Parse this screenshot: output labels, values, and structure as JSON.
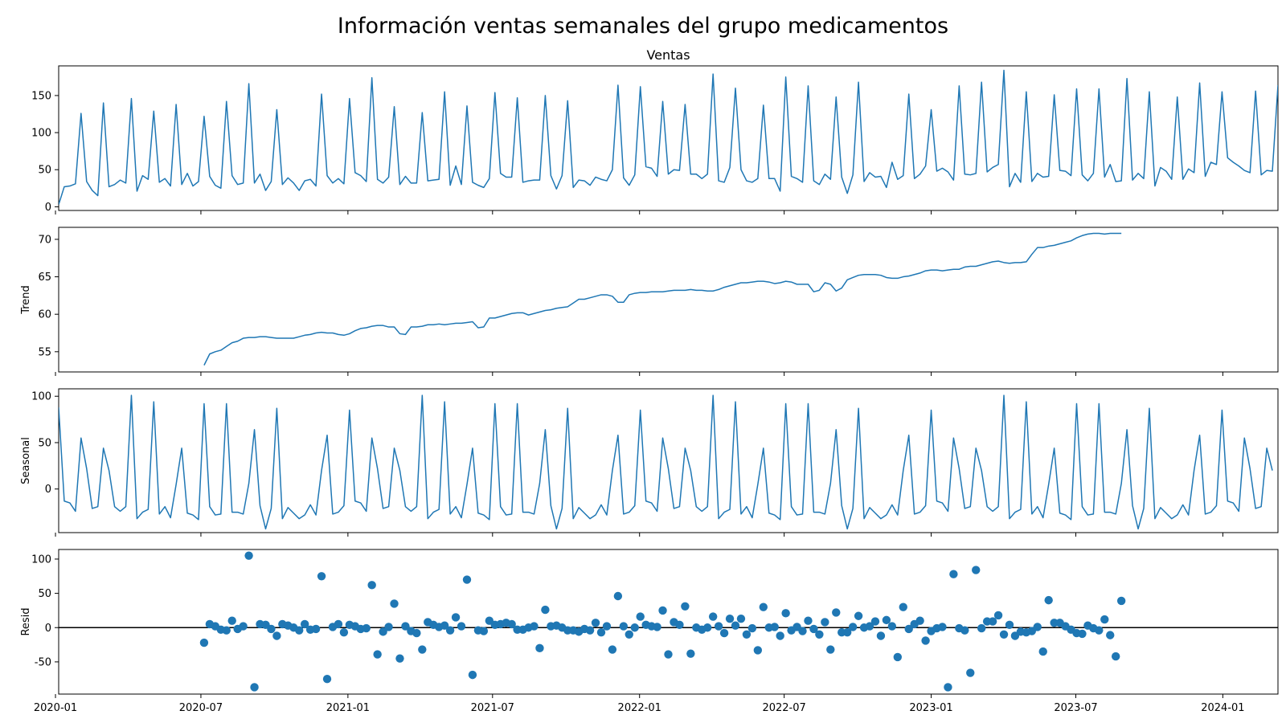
{
  "figure": {
    "suptitle": "Información ventas semanales del grupo medicamentos",
    "line_color": "#1f77b4",
    "zero_line_color": "#000000"
  },
  "chart_data": [
    {
      "type": "line",
      "title": "Ventas",
      "ylabel": "",
      "xlim": [
        "2020-01-05",
        "2024-03-10"
      ],
      "ylim": [
        -5,
        190
      ],
      "yticks": [
        0,
        50,
        100,
        150
      ],
      "x_tick_labels_shown": false,
      "x_start": "2020-01-05",
      "x_step_days": 7,
      "values": [
        3,
        27,
        28,
        31,
        126,
        34,
        22,
        15,
        140,
        27,
        30,
        36,
        32,
        146,
        21,
        42,
        37,
        129,
        33,
        38,
        28,
        138,
        30,
        45,
        28,
        34,
        122,
        41,
        29,
        25,
        142,
        42,
        30,
        32,
        166,
        32,
        44,
        22,
        34,
        131,
        30,
        39,
        32,
        22,
        35,
        37,
        28,
        152,
        42,
        32,
        38,
        31,
        146,
        46,
        42,
        34,
        174,
        37,
        32,
        40,
        135,
        30,
        41,
        32,
        32,
        127,
        35,
        36,
        37,
        155,
        29,
        55,
        30,
        136,
        33,
        29,
        26,
        38,
        154,
        45,
        40,
        40,
        147,
        33,
        35,
        36,
        36,
        150,
        42,
        24,
        42,
        143,
        26,
        36,
        35,
        29,
        40,
        37,
        35,
        50,
        164,
        39,
        29,
        43,
        162,
        54,
        52,
        41,
        142,
        44,
        50,
        49,
        138,
        44,
        44,
        38,
        44,
        179,
        35,
        33,
        53,
        160,
        50,
        35,
        33,
        38,
        137,
        38,
        38,
        21,
        175,
        41,
        38,
        33,
        163,
        35,
        30,
        44,
        37,
        148,
        40,
        18,
        43,
        168,
        34,
        46,
        40,
        41,
        26,
        60,
        37,
        42,
        152,
        38,
        44,
        55,
        131,
        48,
        52,
        47,
        36,
        163,
        44,
        43,
        45,
        168,
        47,
        53,
        57,
        184,
        27,
        45,
        33,
        155,
        34,
        45,
        40,
        41,
        151,
        49,
        48,
        42,
        159,
        43,
        35,
        45,
        159,
        40,
        57,
        34,
        35,
        173,
        36,
        45,
        38,
        155,
        28,
        53,
        48,
        37,
        148,
        37,
        51,
        46,
        167,
        41,
        60,
        57,
        155,
        66,
        60,
        55,
        49,
        46,
        156,
        43,
        49,
        48,
        164
      ]
    },
    {
      "type": "line",
      "title": "",
      "ylabel": "Trend",
      "xlim": [
        "2020-01-05",
        "2024-03-10"
      ],
      "ylim": [
        52.3,
        71.6
      ],
      "yticks": [
        55,
        60,
        65,
        70
      ],
      "x_tick_labels_shown": false,
      "x_start": "2020-01-05",
      "x_step_days": 7,
      "values": [
        null,
        null,
        null,
        null,
        null,
        null,
        null,
        null,
        null,
        null,
        null,
        null,
        null,
        null,
        null,
        null,
        null,
        null,
        null,
        null,
        null,
        null,
        null,
        null,
        null,
        null,
        53.2,
        54.7,
        55.0,
        55.2,
        55.7,
        56.2,
        56.4,
        56.8,
        56.9,
        56.9,
        57.0,
        57.0,
        56.9,
        56.8,
        56.8,
        56.8,
        56.8,
        57.0,
        57.2,
        57.3,
        57.5,
        57.6,
        57.5,
        57.5,
        57.3,
        57.2,
        57.4,
        57.8,
        58.1,
        58.2,
        58.4,
        58.5,
        58.5,
        58.3,
        58.3,
        57.4,
        57.3,
        58.3,
        58.3,
        58.4,
        58.6,
        58.6,
        58.7,
        58.6,
        58.7,
        58.8,
        58.8,
        58.9,
        59.0,
        58.2,
        58.3,
        59.5,
        59.5,
        59.7,
        59.9,
        60.1,
        60.2,
        60.2,
        59.9,
        60.1,
        60.3,
        60.5,
        60.6,
        60.8,
        60.9,
        61.0,
        61.5,
        62.0,
        62.0,
        62.2,
        62.4,
        62.6,
        62.6,
        62.4,
        61.6,
        61.6,
        62.6,
        62.8,
        62.9,
        62.9,
        63.0,
        63.0,
        63.0,
        63.1,
        63.2,
        63.2,
        63.2,
        63.3,
        63.2,
        63.2,
        63.1,
        63.1,
        63.3,
        63.6,
        63.8,
        64.0,
        64.2,
        64.2,
        64.3,
        64.4,
        64.4,
        64.3,
        64.1,
        64.2,
        64.4,
        64.3,
        64.0,
        64.0,
        64.0,
        63.0,
        63.2,
        64.2,
        64.0,
        63.1,
        63.5,
        64.6,
        64.9,
        65.2,
        65.3,
        65.3,
        65.3,
        65.2,
        64.9,
        64.8,
        64.8,
        65.0,
        65.1,
        65.3,
        65.5,
        65.8,
        65.9,
        65.9,
        65.8,
        65.9,
        66.0,
        66.0,
        66.3,
        66.4,
        66.4,
        66.6,
        66.8,
        67.0,
        67.1,
        66.9,
        66.8,
        66.9,
        66.9,
        67.0,
        68.0,
        68.9,
        68.9,
        69.1,
        69.2,
        69.4,
        69.6,
        69.8,
        70.2,
        70.5,
        70.7,
        70.8,
        70.8,
        70.7,
        70.8,
        70.8,
        70.8
      ]
    },
    {
      "type": "line",
      "title": "",
      "ylabel": "Seasonal",
      "xlim": [
        "2020-01-05",
        "2024-03-10"
      ],
      "ylim": [
        -47,
        108
      ],
      "yticks": [
        0,
        50,
        100
      ],
      "x_tick_labels_shown": false,
      "x_start": "2020-01-05",
      "x_step_days": 7,
      "values": [
        88,
        -13,
        -15,
        -24,
        55,
        22,
        -21,
        -19,
        44,
        20,
        -19,
        -24,
        -19,
        101,
        -32,
        -25,
        -22,
        94,
        -27,
        -19,
        -31,
        5,
        44,
        -26,
        -28,
        -33,
        92,
        -19,
        -28,
        -27,
        92,
        -25,
        -25,
        -27,
        6,
        64,
        -18,
        -43,
        -21,
        87,
        -32,
        -20,
        -26,
        -32,
        -28,
        -17,
        -28,
        20,
        58,
        -27,
        -25,
        -18,
        85,
        -13,
        -15,
        -24,
        55,
        22,
        -21,
        -19,
        44,
        20,
        -19,
        -24,
        -19,
        101,
        -32,
        -25,
        -22,
        94,
        -27,
        -19,
        -31,
        5,
        44,
        -26,
        -28,
        -33,
        92,
        -19,
        -28,
        -27,
        92,
        -25,
        -25,
        -27,
        6,
        64,
        -18,
        -43,
        -21,
        87,
        -32,
        -20,
        -26,
        -32,
        -28,
        -17,
        -28,
        20,
        58,
        -27,
        -25,
        -18,
        85,
        -13,
        -15,
        -24,
        55,
        22,
        -21,
        -19,
        44,
        20,
        -19,
        -24,
        -19,
        101,
        -32,
        -25,
        -22,
        94,
        -27,
        -19,
        -31,
        5,
        44,
        -26,
        -28,
        -33,
        92,
        -19,
        -28,
        -27,
        92,
        -25,
        -25,
        -27,
        6,
        64,
        -18,
        -43,
        -21,
        87,
        -32,
        -20,
        -26,
        -32,
        -28,
        -17,
        -28,
        20,
        58,
        -27,
        -25,
        -18,
        85,
        -13,
        -15,
        -24,
        55,
        22,
        -21,
        -19,
        44,
        20,
        -19,
        -24,
        -19,
        101,
        -32,
        -25,
        -22,
        94,
        -27,
        -19,
        -31,
        5,
        44,
        -26,
        -28,
        -33,
        92,
        -19,
        -28,
        -27,
        92,
        -25,
        -25,
        -27,
        6,
        64,
        -18,
        -43,
        -21,
        87,
        -32,
        -20,
        -26,
        -32,
        -28,
        -17,
        -28,
        20,
        58,
        -27,
        -25,
        -18,
        85,
        -13,
        -15,
        -24,
        55,
        22,
        -21,
        -19,
        44,
        20
      ]
    },
    {
      "type": "scatter",
      "title": "",
      "ylabel": "Resid",
      "xlim": [
        "2020-01-05",
        "2024-03-10"
      ],
      "ylim": [
        -97,
        114
      ],
      "yticks": [
        -50,
        0,
        50,
        100
      ],
      "zero_line": true,
      "x_tick_labels_shown": true,
      "x_ticks": [
        {
          "date": "2020-01-01",
          "label": "2020-01"
        },
        {
          "date": "2020-07-01",
          "label": "2020-07"
        },
        {
          "date": "2021-01-01",
          "label": "2021-01"
        },
        {
          "date": "2021-07-01",
          "label": "2021-07"
        },
        {
          "date": "2022-01-01",
          "label": "2022-01"
        },
        {
          "date": "2022-07-01",
          "label": "2022-07"
        },
        {
          "date": "2023-01-01",
          "label": "2023-01"
        },
        {
          "date": "2023-07-01",
          "label": "2023-07"
        },
        {
          "date": "2024-01-01",
          "label": "2024-01"
        }
      ],
      "x_start": "2020-01-05",
      "x_step_days": 7,
      "values": [
        null,
        null,
        null,
        null,
        null,
        null,
        null,
        null,
        null,
        null,
        null,
        null,
        null,
        null,
        null,
        null,
        null,
        null,
        null,
        null,
        null,
        null,
        null,
        null,
        null,
        null,
        -22,
        5,
        2,
        -3,
        -4,
        10,
        -2,
        2,
        105,
        -87,
        5,
        4,
        -2,
        -12,
        5,
        3,
        0,
        -4,
        5,
        -3,
        -2,
        75,
        -75,
        1,
        5,
        -7,
        4,
        2,
        -2,
        -1,
        62,
        -39,
        -6,
        1,
        35,
        -45,
        2,
        -5,
        -8,
        -32,
        8,
        4,
        1,
        3,
        -4,
        15,
        2,
        70,
        -69,
        -4,
        -5,
        10,
        4,
        5,
        7,
        5,
        -3,
        -3,
        0,
        2,
        -30,
        26,
        2,
        3,
        0,
        -4,
        -4,
        -6,
        -2,
        -4,
        7,
        -7,
        2,
        -32,
        46,
        2,
        -10,
        0,
        16,
        4,
        2,
        1,
        25,
        -39,
        8,
        4,
        31,
        -38,
        0,
        -3,
        0,
        16,
        2,
        -8,
        13,
        3,
        13,
        -10,
        -1,
        -33,
        30,
        0,
        1,
        -12,
        21,
        -4,
        1,
        -5,
        10,
        -2,
        -10,
        8,
        -32,
        22,
        -7,
        -7,
        1,
        17,
        0,
        2,
        9,
        -12,
        11,
        2,
        -43,
        30,
        -2,
        5,
        10,
        -19,
        -5,
        -1,
        1,
        -87,
        78,
        -1,
        -4,
        -66,
        84,
        -1,
        9,
        9,
        18,
        -10,
        4,
        -12,
        -6,
        -7,
        -5,
        1,
        -35,
        40,
        7,
        7,
        2,
        -3,
        -8,
        -9,
        3,
        -1,
        -4,
        12,
        -11,
        -42,
        39
      ]
    }
  ]
}
